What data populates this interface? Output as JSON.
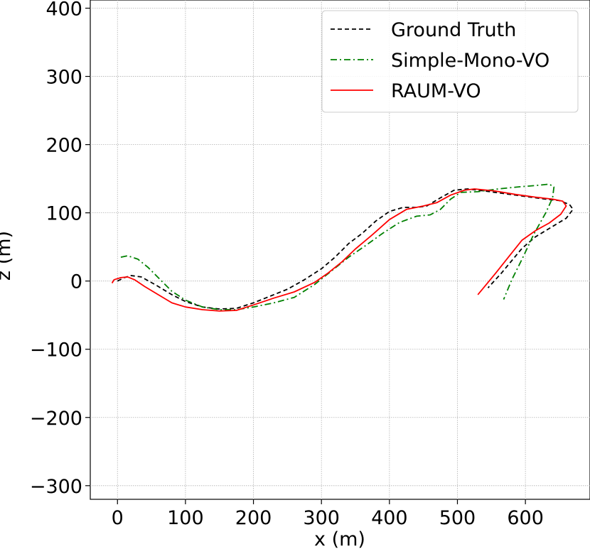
{
  "chart_data": {
    "type": "line",
    "title": "",
    "xlabel": "x (m)",
    "ylabel": "z (m)",
    "xlim": [
      -40,
      695
    ],
    "ylim": [
      -320,
      412
    ],
    "xticks": [
      0,
      100,
      200,
      300,
      400,
      500,
      600
    ],
    "yticks": [
      -300,
      -200,
      -100,
      0,
      100,
      200,
      300,
      400
    ],
    "xtick_labels": [
      "0",
      "100",
      "200",
      "300",
      "400",
      "500",
      "600"
    ],
    "ytick_labels": [
      "−300",
      "−200",
      "−100",
      "0",
      "100",
      "200",
      "300",
      "400"
    ],
    "grid": true,
    "legend_position": "top-right",
    "series": [
      {
        "name": "Ground Truth",
        "color": "#000000",
        "style": "dashed",
        "points": [
          [
            0,
            0
          ],
          [
            10,
            5
          ],
          [
            20,
            8
          ],
          [
            35,
            6
          ],
          [
            55,
            -5
          ],
          [
            80,
            -20
          ],
          [
            100,
            -30
          ],
          [
            125,
            -38
          ],
          [
            150,
            -41
          ],
          [
            175,
            -40
          ],
          [
            200,
            -32
          ],
          [
            225,
            -22
          ],
          [
            250,
            -12
          ],
          [
            275,
            2
          ],
          [
            300,
            18
          ],
          [
            320,
            35
          ],
          [
            340,
            55
          ],
          [
            360,
            70
          ],
          [
            380,
            88
          ],
          [
            400,
            102
          ],
          [
            420,
            108
          ],
          [
            440,
            108
          ],
          [
            455,
            110
          ],
          [
            475,
            122
          ],
          [
            495,
            133
          ],
          [
            515,
            135
          ],
          [
            540,
            132
          ],
          [
            570,
            128
          ],
          [
            600,
            124
          ],
          [
            630,
            120
          ],
          [
            650,
            118
          ],
          [
            665,
            112
          ],
          [
            670,
            105
          ],
          [
            660,
            92
          ],
          [
            640,
            80
          ],
          [
            615,
            65
          ],
          [
            595,
            48
          ],
          [
            580,
            30
          ],
          [
            565,
            12
          ],
          [
            545,
            -10
          ]
        ]
      },
      {
        "name": "Simple-Mono-VO",
        "color": "#008000",
        "style": "dashdot",
        "points": [
          [
            5,
            35
          ],
          [
            15,
            37
          ],
          [
            30,
            32
          ],
          [
            45,
            20
          ],
          [
            60,
            5
          ],
          [
            80,
            -15
          ],
          [
            100,
            -28
          ],
          [
            125,
            -38
          ],
          [
            150,
            -42
          ],
          [
            175,
            -42
          ],
          [
            200,
            -38
          ],
          [
            230,
            -32
          ],
          [
            260,
            -24
          ],
          [
            290,
            -5
          ],
          [
            315,
            15
          ],
          [
            340,
            35
          ],
          [
            365,
            52
          ],
          [
            390,
            70
          ],
          [
            415,
            86
          ],
          [
            440,
            95
          ],
          [
            460,
            97
          ],
          [
            475,
            105
          ],
          [
            490,
            120
          ],
          [
            505,
            130
          ],
          [
            530,
            131
          ],
          [
            560,
            135
          ],
          [
            590,
            138
          ],
          [
            615,
            140
          ],
          [
            635,
            142
          ],
          [
            642,
            138
          ],
          [
            640,
            122
          ],
          [
            630,
            100
          ],
          [
            612,
            68
          ],
          [
            595,
            32
          ],
          [
            580,
            2
          ],
          [
            568,
            -27
          ]
        ]
      },
      {
        "name": "RAUM-VO",
        "color": "#ff0000",
        "style": "solid",
        "points": [
          [
            -8,
            -3
          ],
          [
            -5,
            2
          ],
          [
            5,
            5
          ],
          [
            15,
            6
          ],
          [
            25,
            2
          ],
          [
            40,
            -8
          ],
          [
            60,
            -20
          ],
          [
            80,
            -32
          ],
          [
            100,
            -38
          ],
          [
            125,
            -42
          ],
          [
            150,
            -44
          ],
          [
            175,
            -43
          ],
          [
            200,
            -35
          ],
          [
            230,
            -25
          ],
          [
            260,
            -16
          ],
          [
            290,
            -2
          ],
          [
            310,
            12
          ],
          [
            330,
            28
          ],
          [
            350,
            47
          ],
          [
            375,
            68
          ],
          [
            400,
            90
          ],
          [
            425,
            105
          ],
          [
            450,
            110
          ],
          [
            470,
            115
          ],
          [
            490,
            126
          ],
          [
            510,
            133
          ],
          [
            525,
            135
          ],
          [
            555,
            132
          ],
          [
            585,
            127
          ],
          [
            615,
            123
          ],
          [
            640,
            120
          ],
          [
            655,
            117
          ],
          [
            660,
            110
          ],
          [
            652,
            98
          ],
          [
            635,
            85
          ],
          [
            615,
            74
          ],
          [
            595,
            60
          ],
          [
            575,
            35
          ],
          [
            555,
            10
          ],
          [
            530,
            -20
          ]
        ]
      }
    ]
  }
}
